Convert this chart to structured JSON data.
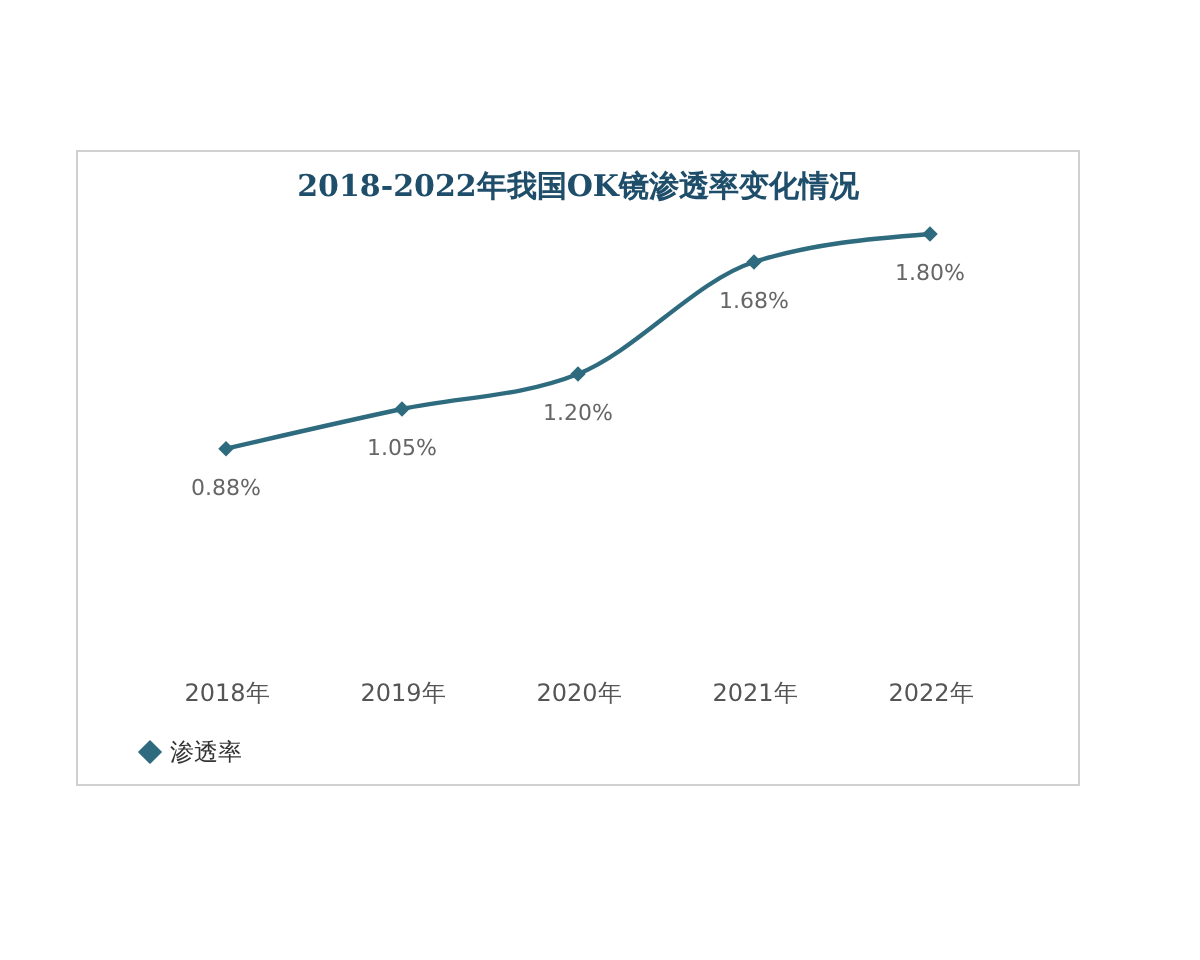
{
  "chart_data": {
    "type": "line",
    "title": "2018-2022年我国OK镜渗透率变化情况",
    "categories": [
      "2018年",
      "2019年",
      "2020年",
      "2021年",
      "2022年"
    ],
    "series": [
      {
        "name": "渗透率",
        "color": "#2e6b7e",
        "values": [
          0.88,
          1.05,
          1.2,
          1.68,
          1.8
        ],
        "value_labels": [
          "0.88%",
          "1.05%",
          "1.20%",
          "1.68%",
          "1.80%"
        ]
      }
    ],
    "marker": "diamond",
    "legend": "bottom",
    "tick_labels": "x"
  }
}
